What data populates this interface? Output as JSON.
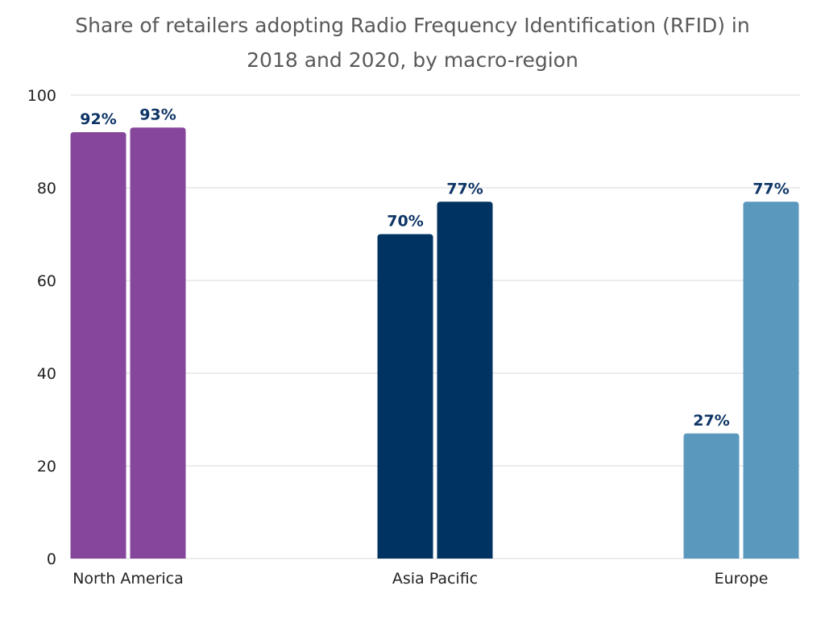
{
  "chart_data": {
    "type": "bar",
    "title_lines": [
      "Share of retailers adopting Radio Frequency Identification (RFID) in",
      "2018 and 2020, by macro-region"
    ],
    "categories": [
      "North America",
      "Asia Pacific",
      "Europe"
    ],
    "series": [
      {
        "values": [
          92,
          70,
          27
        ]
      },
      {
        "values": [
          93,
          77,
          77
        ]
      }
    ],
    "data_labels": [
      [
        "92%",
        "70%",
        "27%"
      ],
      [
        "93%",
        "77%",
        "77%"
      ]
    ],
    "category_colors": [
      "#86469c",
      "#003362",
      "#5a98bd"
    ],
    "label_color": "#0e3566",
    "yticks": [
      "0",
      "20",
      "40",
      "60",
      "80",
      "100"
    ],
    "ylim": [
      0,
      100
    ],
    "grid": true,
    "xlabel": "",
    "ylabel": ""
  }
}
